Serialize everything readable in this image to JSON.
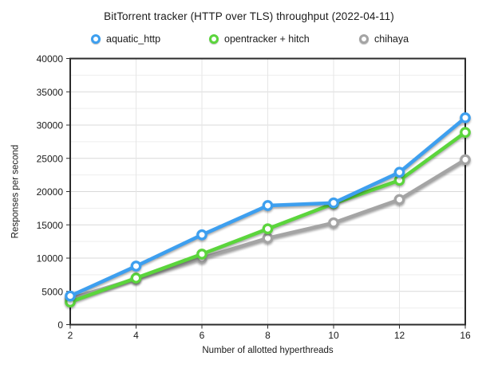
{
  "chart_data": {
    "type": "line",
    "title": "BitTorrent tracker (HTTP over TLS) throughput (2022-04-11)",
    "xlabel": "Number of allotted hyperthreads",
    "ylabel": "Responses per second",
    "categories": [
      2,
      4,
      6,
      8,
      10,
      12,
      16
    ],
    "x_tick_labels": [
      "2",
      "4",
      "6",
      "8",
      "10",
      "12",
      "16"
    ],
    "series": [
      {
        "name": "aquatic_http",
        "color": "#3D9FEF",
        "values": [
          4300,
          8800,
          13500,
          17900,
          18300,
          22900,
          31100
        ]
      },
      {
        "name": "opentracker + hitch",
        "color": "#5BD53C",
        "values": [
          3400,
          7000,
          10600,
          14400,
          18200,
          21700,
          28900
        ]
      },
      {
        "name": "chihaya",
        "color": "#A4A4A4",
        "values": [
          3900,
          6900,
          10000,
          13000,
          15300,
          18800,
          24800
        ]
      }
    ],
    "ylim": [
      0,
      40000
    ],
    "y_major_step": 5000,
    "y_minor_step": 2500,
    "y_tick_labels": [
      "0",
      "5000",
      "10000",
      "15000",
      "20000",
      "25000",
      "30000",
      "35000",
      "40000"
    ],
    "grid": true,
    "legend_position": "top",
    "marker": "open-circle"
  },
  "style": {
    "frame_color": "#2b2b2b",
    "major_grid_color": "#d9d9d9",
    "minor_grid_color": "#eeeeee",
    "vertical_grid_color": "#e6e6e6",
    "text_color": "#1b1b1b"
  }
}
